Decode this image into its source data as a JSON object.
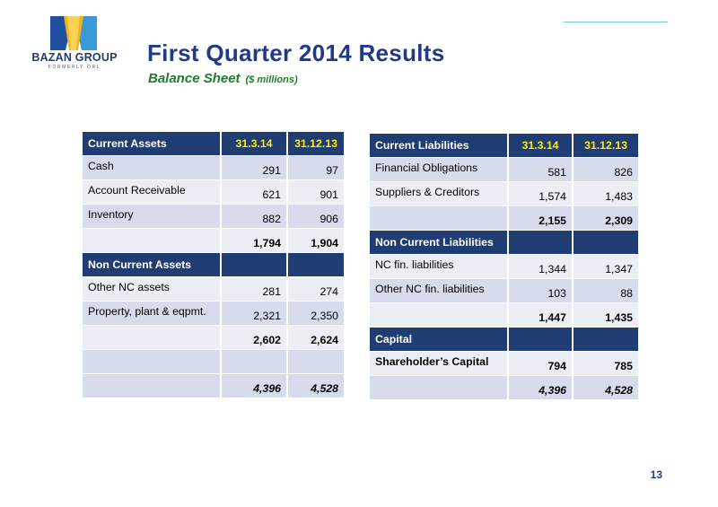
{
  "logo": {
    "name": "BAZAN GROUP",
    "sub": "FORMERLY ORL"
  },
  "title": "First Quarter 2014 Results",
  "subtitle": "Balance Sheet",
  "subtitle_unit": "($ millions)",
  "page_number": "13",
  "left_table": {
    "rows": [
      {
        "style": "head",
        "label": "Current Assets",
        "v1": "31.3.14",
        "v2": "31.12.13"
      },
      {
        "style": "shade",
        "label": "Cash",
        "v1": "291",
        "v2": "97"
      },
      {
        "style": "plain",
        "label": "Account Receivable",
        "v1": "621",
        "v2": "901"
      },
      {
        "style": "shade",
        "label": "Inventory",
        "v1": "882",
        "v2": "906"
      },
      {
        "style": "plain bold",
        "label": "",
        "v1": "1,794",
        "v2": "1,904"
      },
      {
        "style": "head",
        "label": "Non Current Assets",
        "v1": "",
        "v2": ""
      },
      {
        "style": "plain",
        "label": "Other NC assets",
        "v1": "281",
        "v2": "274"
      },
      {
        "style": "shade",
        "label": "Property, plant & eqpmt.",
        "v1": "2,321",
        "v2": "2,350"
      },
      {
        "style": "plain bold",
        "label": "",
        "v1": "2,602",
        "v2": "2,624"
      },
      {
        "style": "shade",
        "label": "",
        "v1": "",
        "v2": ""
      },
      {
        "style": "shade bold ital",
        "label": "",
        "v1": "4,396",
        "v2": "4,528"
      }
    ]
  },
  "right_table": {
    "rows": [
      {
        "style": "head",
        "label": "Current Liabilities",
        "v1": "31.3.14",
        "v2": "31.12.13"
      },
      {
        "style": "shade",
        "label": "Financial Obligations",
        "v1": "581",
        "v2": "826"
      },
      {
        "style": "plain",
        "label": "Suppliers & Creditors",
        "v1": "1,574",
        "v2": "1,483"
      },
      {
        "style": "shade bold",
        "label": "",
        "v1": "2,155",
        "v2": "2,309"
      },
      {
        "style": "head",
        "label": "Non Current Liabilities",
        "v1": "",
        "v2": ""
      },
      {
        "style": "plain",
        "label": "NC fin. liabilities",
        "v1": "1,344",
        "v2": "1,347"
      },
      {
        "style": "shade",
        "label": "Other NC fin. liabilities",
        "v1": "103",
        "v2": "88"
      },
      {
        "style": "plain bold",
        "label": "",
        "v1": "1,447",
        "v2": "1,435"
      },
      {
        "style": "head",
        "label": "Capital",
        "v1": "",
        "v2": ""
      },
      {
        "style": "plain bold",
        "label": "Shareholder’s Capital",
        "v1": "794",
        "v2": "785"
      },
      {
        "style": "shade bold ital",
        "label": "",
        "v1": "4,396",
        "v2": "4,528"
      }
    ]
  }
}
